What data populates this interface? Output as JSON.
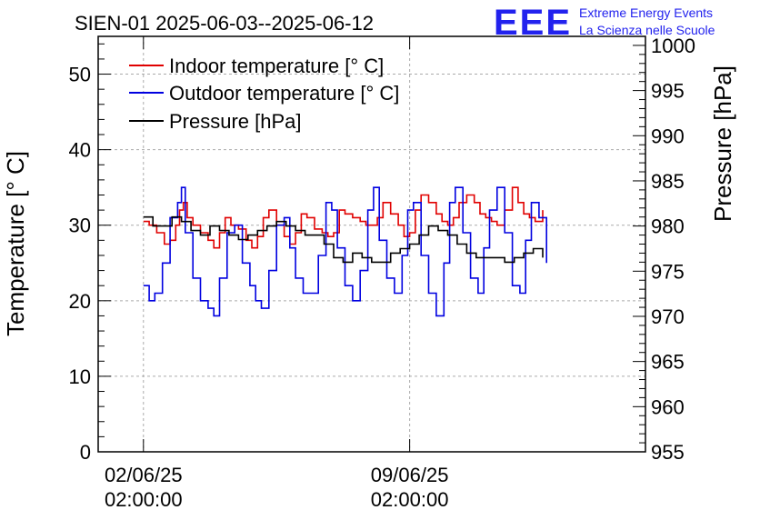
{
  "header": {
    "title": "SIEN-01 2025-06-03--2025-06-12",
    "logo_text": "EEE",
    "logo_line1": "Extreme Energy Events",
    "logo_line2": "La Scienza nelle Scuole"
  },
  "colors": {
    "indoor": "#e00000",
    "outdoor": "#0000e0",
    "pressure": "#000000",
    "brand": "#2222ee",
    "grid": "#aaaaaa"
  },
  "chart_data": {
    "type": "line",
    "title": "SIEN-01 2025-06-03--2025-06-12",
    "xlabel": "",
    "ylabel": "Temperature [° C]",
    "y2label": "Pressure [hPa]",
    "xlim": [
      -1.19,
      13.2
    ],
    "ylim": [
      0,
      55
    ],
    "y2lim": [
      955,
      1001
    ],
    "x_unit": "days since 03/06/25 00:00",
    "xticks": [
      {
        "at": 0,
        "line1": "02/06/25",
        "line2": "02:00:00"
      },
      {
        "at": 7,
        "line1": "09/06/25",
        "line2": "02:00:00"
      }
    ],
    "yticks": [
      0,
      10,
      20,
      30,
      40,
      50
    ],
    "y2ticks": [
      955,
      960,
      965,
      970,
      975,
      980,
      985,
      990,
      995,
      1000
    ],
    "grid": true,
    "legend": "top-left",
    "series": [
      {
        "name": "Indoor temperature [° C]",
        "axis": "left",
        "color": "#e00000",
        "x": [
          0,
          0.15,
          0.35,
          0.55,
          0.7,
          0.85,
          0.95,
          1.05,
          1.15,
          1.3,
          1.5,
          1.7,
          1.85,
          2.0,
          2.15,
          2.3,
          2.5,
          2.7,
          2.85,
          3.0,
          3.15,
          3.3,
          3.5,
          3.7,
          3.85,
          4.0,
          4.15,
          4.3,
          4.5,
          4.7,
          4.85,
          5.0,
          5.15,
          5.3,
          5.5,
          5.7,
          5.85,
          6.0,
          6.15,
          6.3,
          6.5,
          6.7,
          6.85,
          7.0,
          7.15,
          7.3,
          7.5,
          7.7,
          7.85,
          8.0,
          8.15,
          8.3,
          8.5,
          8.7,
          8.85,
          9.0,
          9.15,
          9.3,
          9.5,
          9.7,
          9.85,
          10.0,
          10.15,
          10.3,
          10.5
        ],
        "y": [
          30.5,
          30,
          29,
          27.5,
          28,
          30,
          32,
          33,
          31,
          30,
          29,
          28,
          27,
          29,
          31,
          30,
          29.5,
          28,
          27,
          28.5,
          31,
          32,
          30,
          28.5,
          27.5,
          29,
          31.5,
          31,
          29.5,
          29,
          28.5,
          29,
          32,
          31.5,
          31,
          30.5,
          30,
          30,
          31,
          33,
          31.5,
          30,
          28.5,
          29,
          32,
          34,
          33,
          31.5,
          30.5,
          30,
          31,
          33,
          34,
          33,
          31.5,
          31,
          30.5,
          30,
          32,
          35,
          33,
          31.5,
          31,
          30.5,
          32
        ]
      },
      {
        "name": "Outdoor temperature [° C]",
        "axis": "left",
        "color": "#0000e0",
        "x": [
          0,
          0.15,
          0.3,
          0.5,
          0.7,
          0.9,
          1.0,
          1.1,
          1.3,
          1.5,
          1.7,
          1.85,
          2.0,
          2.2,
          2.4,
          2.6,
          2.8,
          2.95,
          3.1,
          3.3,
          3.5,
          3.7,
          3.85,
          4.0,
          4.2,
          4.4,
          4.6,
          4.8,
          4.95,
          5.1,
          5.3,
          5.5,
          5.7,
          5.9,
          6.05,
          6.2,
          6.4,
          6.6,
          6.8,
          6.95,
          7.1,
          7.3,
          7.5,
          7.7,
          7.9,
          8.05,
          8.2,
          8.4,
          8.6,
          8.8,
          8.95,
          9.1,
          9.3,
          9.5,
          9.7,
          9.9,
          10.05,
          10.2,
          10.4,
          10.6
        ],
        "y": [
          22,
          20,
          21,
          25,
          31,
          33,
          35,
          29,
          23,
          20,
          19,
          18,
          23,
          29,
          30,
          25,
          22,
          20,
          19,
          24,
          30,
          31,
          27,
          23,
          21,
          21,
          26,
          33,
          32,
          27,
          22,
          20,
          24,
          32,
          35,
          28,
          23,
          21,
          26,
          32,
          33,
          26,
          21,
          18,
          25,
          33,
          35,
          29,
          23,
          21,
          27,
          32,
          35,
          29,
          22,
          21,
          28,
          33,
          31,
          25
        ]
      },
      {
        "name": "Pressure [hPa]",
        "axis": "right",
        "color": "#000000",
        "x": [
          0,
          0.25,
          0.5,
          0.75,
          1.0,
          1.25,
          1.5,
          1.75,
          2.0,
          2.25,
          2.5,
          2.75,
          3.0,
          3.25,
          3.5,
          3.75,
          4.0,
          4.25,
          4.5,
          4.75,
          5.0,
          5.25,
          5.5,
          5.75,
          6.0,
          6.25,
          6.5,
          6.75,
          7.0,
          7.25,
          7.5,
          7.75,
          8.0,
          8.25,
          8.5,
          8.75,
          9.0,
          9.25,
          9.5,
          9.75,
          10.0,
          10.25,
          10.5
        ],
        "y": [
          981,
          980,
          980,
          981,
          980.5,
          979.5,
          979,
          980,
          979.5,
          979,
          978.5,
          979,
          979.5,
          980,
          980.5,
          980,
          979.5,
          979,
          979,
          978,
          976.5,
          976,
          977,
          976.5,
          976,
          976,
          977,
          977.5,
          978,
          979,
          980,
          979.5,
          979,
          978,
          977,
          976.5,
          976.5,
          976.5,
          976,
          976.5,
          977,
          977.5,
          976.5
        ]
      }
    ]
  }
}
